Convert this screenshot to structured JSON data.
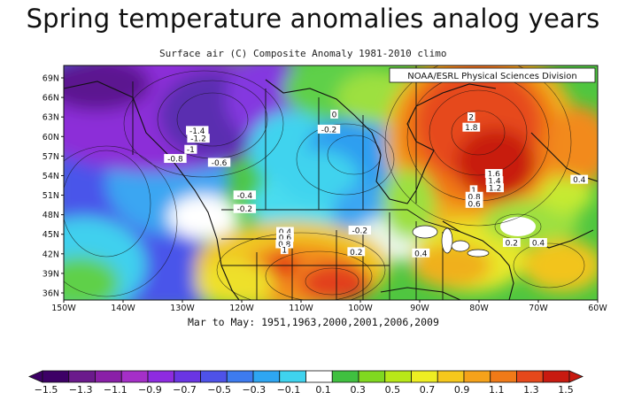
{
  "title": "Spring temperature anomalies analog years",
  "map": {
    "subtitle": "Surface air (C) Composite Anomaly 1981-2010 climo",
    "credit": "NOAA/ESRL Physical Sciences Division",
    "caption": "Mar to May: 1951,1963,2000,2001,2006,2009",
    "lat_labels": [
      "69N",
      "66N",
      "63N",
      "60N",
      "57N",
      "54N",
      "51N",
      "48N",
      "45N",
      "42N",
      "39N",
      "36N"
    ],
    "lon_labels": [
      "150W",
      "140W",
      "130W",
      "120W",
      "110W",
      "100W",
      "90W",
      "80W",
      "70W",
      "60W"
    ],
    "contour_labels": [
      {
        "text": "-1.4",
        "lon": -127.5,
        "lat": 60.8
      },
      {
        "text": "-1.2",
        "lon": -127.3,
        "lat": 59.6
      },
      {
        "text": "-1",
        "lon": -128.6,
        "lat": 57.9
      },
      {
        "text": "-0.8",
        "lon": -131.2,
        "lat": 56.5
      },
      {
        "text": "-0.6",
        "lon": -123.8,
        "lat": 55.9
      },
      {
        "text": "-0.4",
        "lon": -119.5,
        "lat": 50.9
      },
      {
        "text": "-0.2",
        "lon": -119.5,
        "lat": 48.8
      },
      {
        "text": "-0.2",
        "lon": -105.3,
        "lat": 61.0
      },
      {
        "text": "0",
        "lon": -104.4,
        "lat": 63.3
      },
      {
        "text": "-0.2",
        "lon": -100.1,
        "lat": 45.5
      },
      {
        "text": "0.2",
        "lon": -100.7,
        "lat": 42.2
      },
      {
        "text": "0.4",
        "lon": -112.7,
        "lat": 45.3
      },
      {
        "text": "0.6",
        "lon": -112.7,
        "lat": 44.4
      },
      {
        "text": "0.8",
        "lon": -112.8,
        "lat": 43.4
      },
      {
        "text": "1",
        "lon": -112.8,
        "lat": 42.5
      },
      {
        "text": "2",
        "lon": -81.3,
        "lat": 62.9
      },
      {
        "text": "1.8",
        "lon": -81.3,
        "lat": 61.3
      },
      {
        "text": "1.6",
        "lon": -77.5,
        "lat": 54.2
      },
      {
        "text": "1.4",
        "lon": -77.4,
        "lat": 53.1
      },
      {
        "text": "1.2",
        "lon": -77.3,
        "lat": 52.0
      },
      {
        "text": "1",
        "lon": -80.9,
        "lat": 51.7
      },
      {
        "text": "0.8",
        "lon": -80.8,
        "lat": 50.7
      },
      {
        "text": "0.6",
        "lon": -80.8,
        "lat": 49.6
      },
      {
        "text": "0.4",
        "lon": -63.1,
        "lat": 53.3
      },
      {
        "text": "0.2",
        "lon": -74.5,
        "lat": 43.6
      },
      {
        "text": "0.4",
        "lon": -70.0,
        "lat": 43.6
      },
      {
        "text": "0.4",
        "lon": -89.8,
        "lat": 42.0
      }
    ]
  },
  "colorbar": {
    "ticks": [
      "-1.5",
      "-1.3",
      "-1.1",
      "-0.9",
      "-0.7",
      "-0.5",
      "-0.3",
      "-0.1",
      "0.1",
      "0.3",
      "0.5",
      "0.7",
      "0.9",
      "1.1",
      "1.3",
      "1.5"
    ],
    "colors": [
      "#3d0066",
      "#6b1a8c",
      "#8a1fa8",
      "#a52fc8",
      "#8e2be0",
      "#6a35e3",
      "#4e52e8",
      "#3d7bef",
      "#2ea6f2",
      "#3fd3ee",
      "#ffffff",
      "#40c040",
      "#80d820",
      "#b8e818",
      "#eeee22",
      "#f6c81c",
      "#f5a21a",
      "#f07a18",
      "#e6481b",
      "#c81a10"
    ]
  },
  "colors": {
    "deep_cold": "#4a0a78",
    "purple": "#8c1fcf",
    "blue": "#4450ec",
    "light_blue": "#3aaaf3",
    "cyan": "#47dcef",
    "neutral": "#ffffff",
    "green": "#4cc63c",
    "yellow": "#ece82a",
    "orange": "#f28c1a",
    "red": "#e23a16",
    "dark_red": "#b5140c"
  }
}
